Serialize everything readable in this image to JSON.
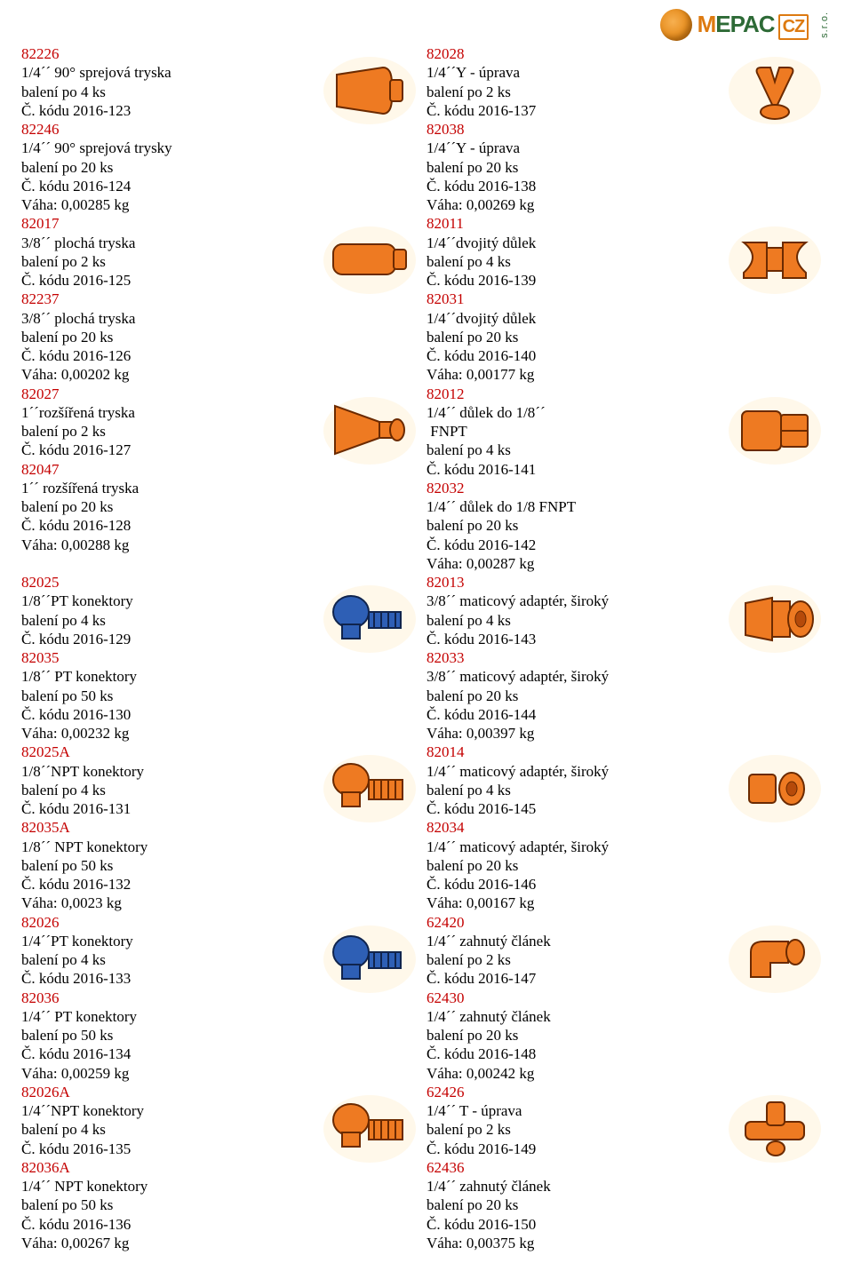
{
  "logo": {
    "text_m": "M",
    "text_rest": "EPAC",
    "cz": "CZ",
    "sro": "s.r.o."
  },
  "colors": {
    "sku": "#c40000",
    "orange_fill": "#ee7a22",
    "orange_stroke": "#6b2a00",
    "blue_fill": "#2e5fb5",
    "blue_stroke": "#10244d",
    "bg_halo": "#fff3d8"
  },
  "rows": [
    {
      "left": {
        "sku1": "82226",
        "l1": "1/4´´ 90° sprejová tryska",
        "l2": "balení po 4 ks",
        "l3": "Č. kódu 2016-123",
        "sku2": "82246",
        "l4": "1/4´´ 90° sprejová trysky",
        "l5": "balení po 20 ks",
        "l6": "Č. kódu 2016-124",
        "l7": "Váha: 0,00285 kg",
        "icon": "nozzle-flat"
      },
      "right": {
        "sku1": "82028",
        "l1": "1/4´´Y - úprava",
        "l2": "balení po 2 ks",
        "l3": "Č. kódu 2016-137",
        "sku2": "82038",
        "l4": "1/4´´Y - úprava",
        "l5": "balení po 20 ks",
        "l6": "Č. kódu 2016-138",
        "l7": "Váha: 0,00269 kg",
        "icon": "y-fitting"
      }
    },
    {
      "left": {
        "sku1": "82017",
        "l1": "3/8´´ plochá tryska",
        "l2": "balení po 2 ks",
        "l3": "Č. kódu 2016-125",
        "sku2": "82237",
        "l4": "3/8´´ plochá tryska",
        "l5": "balení po 20 ks",
        "l6": "Č. kódu 2016-126",
        "l7": "Váha: 0,00202 kg",
        "icon": "flat-wide"
      },
      "right": {
        "sku1": "82011",
        "l1": "1/4´´dvojitý důlek",
        "l2": "balení po 4 ks",
        "l3": "Č. kódu 2016-139",
        "sku2": "82031",
        "l4": "1/4´´dvojitý důlek",
        "l5": "balení po 20 ks",
        "l6": "Č. kódu 2016-140",
        "l7": "Váha: 0,00177 kg",
        "icon": "double-socket"
      }
    },
    {
      "left": {
        "sku1": "82027",
        "l1": "1´´rozšířená tryska",
        "l2": "balení po 2 ks",
        "l3": "Č. kódu 2016-127",
        "sku2": "82047",
        "l4": "1´´ rozšířená tryska",
        "l5": "balení po 20 ks",
        "l6": "Č. kódu 2016-128",
        "l7": "Váha: 0,00288 kg",
        "icon": "flare"
      },
      "right": {
        "sku1": "82012",
        "l1": "1/4´´ důlek do 1/8´´",
        "l1b": " FNPT",
        "l2": "balení po 4 ks",
        "l3": "Č. kódu 2016-141",
        "sku2": "82032",
        "l4": "1/4´´ důlek do 1/8 FNPT",
        "l5": "balení po 20 ks",
        "l6": "Č. kódu 2016-142",
        "l7": "Váha: 0,00287 kg",
        "icon": "socket-block"
      }
    },
    {
      "left": {
        "sku1": "82025",
        "l1": "1/8´´PT konektory",
        "l2": "balení po 4 ks",
        "l3": "Č. kódu 2016-129",
        "sku2": "82035",
        "l4": "1/8´´ PT konektory",
        "l5": "balení po 50 ks",
        "l6": "Č. kódu 2016-130",
        "l7": "Váha: 0,00232 kg",
        "icon": "connector-blue"
      },
      "right": {
        "sku1": "82013",
        "l1": "3/8´´ maticový adaptér, široký",
        "l2": "balení po 4 ks",
        "l3": "Č. kódu 2016-143",
        "sku2": "82033",
        "l4": "3/8´´ maticový adaptér, široký",
        "l5": "balení po 20 ks",
        "l6": "Č. kódu 2016-144",
        "l7": "Váha: 0,00397 kg",
        "icon": "nut-adapter"
      }
    },
    {
      "left": {
        "sku1": "82025A",
        "l1": "1/8´´NPT konektory",
        "l2": "balení po 4 ks",
        "l3": "Č. kódu 2016-131",
        "sku2": "82035A",
        "l4": "1/8´´ NPT konektory",
        "l5": "balení po 50 ks",
        "l6": "Č. kódu 2016-132",
        "l7": "Váha: 0,0023 kg",
        "icon": "connector-orange"
      },
      "right": {
        "sku1": "82014",
        "l1": "1/4´´ maticový adaptér, široký",
        "l2": "balení po 4 ks",
        "l3": "Č. kódu 2016-145",
        "sku2": "82034",
        "l4": "1/4´´ maticový adaptér, široký",
        "l5": "balení po 20 ks",
        "l6": "Č. kódu 2016-146",
        "l7": "Váha: 0,00167 kg",
        "icon": "nut-adapter-small"
      }
    },
    {
      "left": {
        "sku1": "82026",
        "l1": "1/4´´PT konektory",
        "l2": "balení po 4 ks",
        "l3": "Č. kódu 2016-133",
        "sku2": "82036",
        "l4": "1/4´´ PT konektory",
        "l5": "balení po 50 ks",
        "l6": "Č. kódu 2016-134",
        "l7": "Váha: 0,00259 kg",
        "icon": "connector-blue2"
      },
      "right": {
        "sku1": "62420",
        "l1": "1/4´´ zahnutý článek",
        "l2": "balení po 2 ks",
        "l3": "Č. kódu 2016-147",
        "sku2": "62430",
        "l4": "1/4´´ zahnutý článek",
        "l5": "balení po 20 ks",
        "l6": "Č. kódu 2016-148",
        "l7": "Váha: 0,00242 kg",
        "icon": "elbow"
      }
    },
    {
      "left": {
        "sku1": "82026A",
        "l1": "1/4´´NPT konektory",
        "l2": "balení po 4 ks",
        "l3": "Č. kódu 2016-135",
        "sku2": "82036A",
        "l4": "1/4´´ NPT konektory",
        "l5": "balení po 50 ks",
        "l6": "Č. kódu 2016-136",
        "l7": "Váha: 0,00267 kg",
        "icon": "connector-orange2"
      },
      "right": {
        "sku1": "62426",
        "l1": "1/4´´ T - úprava",
        "l2": "balení po 2 ks",
        "l3": "Č. kódu 2016-149",
        "sku2": "62436",
        "l4": "1/4´´ zahnutý článek",
        "l5": "balení po 20 ks",
        "l6": "Č. kódu 2016-150",
        "l7": "Váha: 0,00375 kg",
        "icon": "t-fitting"
      }
    }
  ]
}
